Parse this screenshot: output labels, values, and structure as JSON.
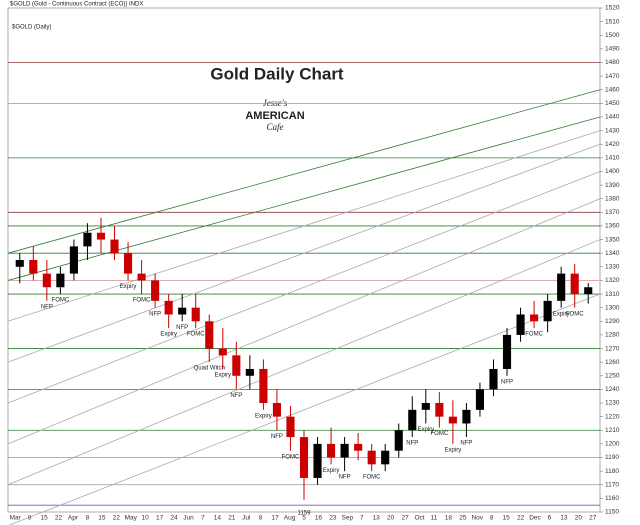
{
  "chart_data": {
    "type": "candlestick",
    "title": "Gold Daily Chart",
    "header": "$GOLD (Gold - Continuous Contract (ECO)) INDX",
    "series_label": "$GOLD (Daily)",
    "ylim": [
      1150,
      1520
    ],
    "yticks": [
      1150,
      1160,
      1170,
      1180,
      1190,
      1200,
      1210,
      1220,
      1230,
      1240,
      1250,
      1260,
      1270,
      1280,
      1290,
      1300,
      1310,
      1320,
      1330,
      1340,
      1350,
      1360,
      1370,
      1380,
      1390,
      1400,
      1410,
      1420,
      1430,
      1440,
      1450,
      1460,
      1470,
      1480,
      1490,
      1500,
      1510,
      1520
    ],
    "xtick_labels": [
      "Mar",
      "8",
      "15",
      "22",
      "Apr",
      "8",
      "15",
      "22",
      "May",
      "10",
      "17",
      "24",
      "Jun",
      "7",
      "14",
      "21",
      "Jul",
      "8",
      "17",
      "Aug",
      "5",
      "16",
      "23",
      "Sep",
      "7",
      "13",
      "20",
      "27",
      "Oct",
      "11",
      "18",
      "25",
      "Nov",
      "8",
      "15",
      "22",
      "Dec",
      "6",
      "13",
      "20",
      "27"
    ],
    "up_color": "#000000",
    "down_color": "#cc0000",
    "open": [
      1330,
      1335,
      1325,
      1315,
      1325,
      1345,
      1355,
      1350,
      1340,
      1325,
      1320,
      1305,
      1295,
      1300,
      1290,
      1270,
      1265,
      1250,
      1255,
      1230,
      1220,
      1205,
      1175,
      1200,
      1190,
      1200,
      1195,
      1185,
      1195,
      1210,
      1225,
      1230,
      1220,
      1215,
      1225,
      1240,
      1255,
      1280,
      1295,
      1290,
      1305,
      1325,
      1310
    ],
    "high": [
      1340,
      1345,
      1335,
      1330,
      1350,
      1362,
      1366,
      1360,
      1348,
      1335,
      1325,
      1310,
      1310,
      1310,
      1295,
      1285,
      1275,
      1265,
      1262,
      1240,
      1228,
      1210,
      1205,
      1212,
      1205,
      1208,
      1200,
      1200,
      1215,
      1235,
      1240,
      1238,
      1232,
      1230,
      1245,
      1262,
      1285,
      1300,
      1305,
      1310,
      1330,
      1332,
      1318
    ],
    "low": [
      1318,
      1320,
      1305,
      1310,
      1320,
      1335,
      1340,
      1335,
      1320,
      1310,
      1300,
      1285,
      1290,
      1285,
      1260,
      1255,
      1240,
      1240,
      1225,
      1210,
      1195,
      1159,
      1170,
      1185,
      1180,
      1188,
      1180,
      1180,
      1190,
      1205,
      1215,
      1212,
      1200,
      1205,
      1220,
      1235,
      1250,
      1275,
      1285,
      1282,
      1300,
      1300,
      1303
    ],
    "close": [
      1335,
      1325,
      1315,
      1325,
      1345,
      1355,
      1350,
      1340,
      1325,
      1320,
      1305,
      1295,
      1300,
      1290,
      1270,
      1265,
      1250,
      1255,
      1230,
      1220,
      1205,
      1175,
      1200,
      1190,
      1200,
      1195,
      1185,
      1195,
      1210,
      1225,
      1230,
      1220,
      1215,
      1225,
      1240,
      1255,
      1280,
      1295,
      1290,
      1305,
      1325,
      1310,
      1315
    ],
    "events": [
      null,
      null,
      "NFP",
      "FOMC",
      null,
      null,
      null,
      null,
      "Expiry",
      "FOMC",
      "NFP",
      "Expiry",
      "NFP",
      "FOMC",
      "Quad Witch",
      "Expiry",
      "NFP",
      null,
      "Expiry",
      "NFP",
      "FOMC",
      null,
      null,
      "Expiry",
      "NFP",
      null,
      "FOMC",
      null,
      null,
      "NFP",
      "Expiry",
      "FOMC",
      "Expiry",
      "NFP",
      null,
      null,
      "NFP",
      null,
      "FOMC",
      null,
      "Expiry",
      "FOMC",
      null
    ],
    "annotations": [
      {
        "text": "1159",
        "value": 1159
      }
    ],
    "hlines": [
      {
        "value": 1480,
        "color": "#8b3a3a"
      },
      {
        "value": 1450,
        "color": "#999999"
      },
      {
        "value": 1410,
        "color": "#2e7d32"
      },
      {
        "value": 1370,
        "color": "#8b3a3a"
      },
      {
        "value": 1360,
        "color": "#2e7d32"
      },
      {
        "value": 1340,
        "color": "#2e7d32"
      },
      {
        "value": 1320,
        "color": "#d9a0a0"
      },
      {
        "value": 1310,
        "color": "#2e7d32"
      },
      {
        "value": 1270,
        "color": "#2e7d32"
      },
      {
        "value": 1240,
        "color": "#2e7d32"
      },
      {
        "value": 1210,
        "color": "#2e7d32"
      },
      {
        "value": 1190,
        "color": "#999999"
      },
      {
        "value": 1170,
        "color": "#999999"
      },
      {
        "value": 1155,
        "color": "#6a5acd"
      }
    ],
    "trendlines": [
      {
        "start": 1340,
        "end": 1460,
        "color": "#2e7d32"
      },
      {
        "start": 1320,
        "end": 1440,
        "color": "#2e7d32"
      },
      {
        "start": 1290,
        "end": 1430,
        "color": "#aaaaaa"
      },
      {
        "start": 1260,
        "end": 1420,
        "color": "#aaaaaa"
      },
      {
        "start": 1230,
        "end": 1400,
        "color": "#aaaaaa"
      },
      {
        "start": 1200,
        "end": 1380,
        "color": "#aaaaaa"
      },
      {
        "start": 1170,
        "end": 1350,
        "color": "#aaaaaa"
      },
      {
        "start": 1140,
        "end": 1310,
        "color": "#aaaaaa"
      }
    ]
  },
  "logo": {
    "line1": "Jesse's",
    "line2": "AMERICAN",
    "line3": "Cafe"
  }
}
